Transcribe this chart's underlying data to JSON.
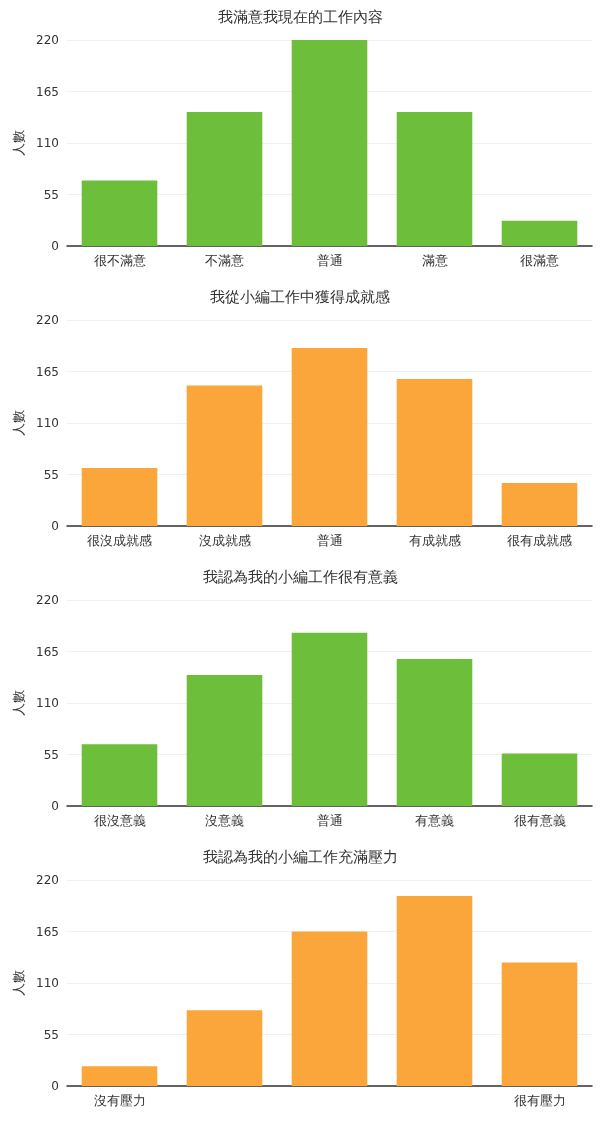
{
  "chart_data": [
    {
      "type": "bar",
      "title": "我滿意我現在的工作內容",
      "ylabel": "人數",
      "categories": [
        "很不滿意",
        "不滿意",
        "普通",
        "滿意",
        "很滿意"
      ],
      "values": [
        70,
        143,
        220,
        143,
        27
      ],
      "color": "#6dbe3a",
      "ylim": [
        0,
        220
      ],
      "yticks": [
        0,
        55,
        110,
        165,
        220
      ],
      "grid": "y"
    },
    {
      "type": "bar",
      "title": "我從小編工作中獲得成就感",
      "ylabel": "人數",
      "categories": [
        "很沒成就感",
        "沒成就感",
        "普通",
        "有成就感",
        "很有成就感"
      ],
      "values": [
        62,
        150,
        190,
        157,
        46
      ],
      "color": "#fba63a",
      "ylim": [
        0,
        220
      ],
      "yticks": [
        0,
        55,
        110,
        165,
        220
      ],
      "grid": "y"
    },
    {
      "type": "bar",
      "title": "我認為我的小編工作很有意義",
      "ylabel": "人數",
      "categories": [
        "很沒意義",
        "沒意義",
        "普通",
        "有意義",
        "很有意義"
      ],
      "values": [
        66,
        140,
        185,
        157,
        56
      ],
      "color": "#6dbe3a",
      "ylim": [
        0,
        220
      ],
      "yticks": [
        0,
        55,
        110,
        165,
        220
      ],
      "grid": "y"
    },
    {
      "type": "bar",
      "title": "我認為我的小編工作充滿壓力",
      "ylabel": "人數",
      "categories": [
        "沒有壓力",
        null,
        null,
        null,
        "很有壓力"
      ],
      "values": [
        21,
        81,
        165,
        203,
        132
      ],
      "color": "#fba63a",
      "ylim": [
        0,
        220
      ],
      "yticks": [
        0,
        55,
        110,
        165,
        220
      ],
      "grid": "y"
    }
  ]
}
